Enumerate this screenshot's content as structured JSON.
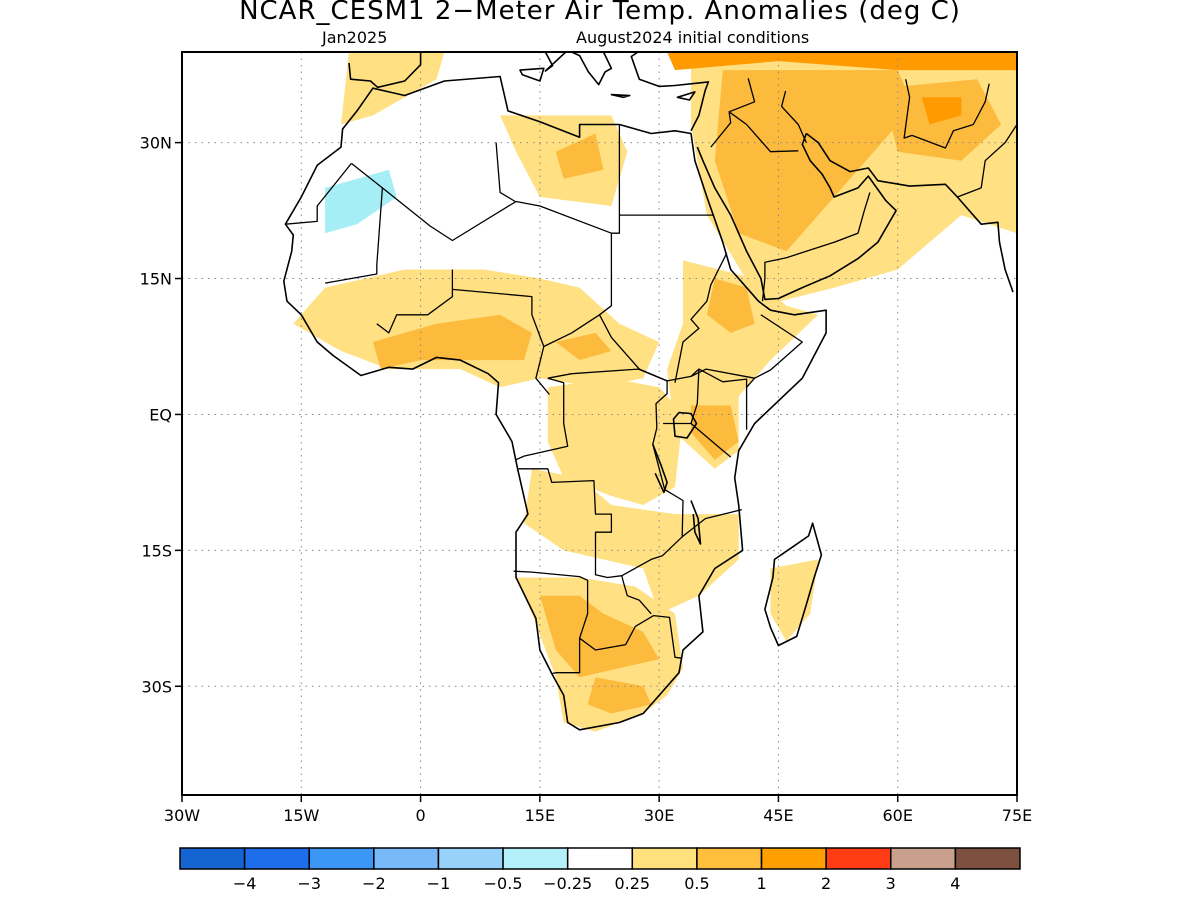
{
  "header": {
    "title": "NCAR_CESM1 2−Meter Air Temp. Anomalies (deg C)",
    "valid_month": "Jan2025",
    "init": "August2024 initial conditions"
  },
  "map": {
    "lon_range": [
      -30,
      75
    ],
    "lat_range": [
      -42,
      40
    ],
    "grid_lines": "dotted",
    "lat_ticks": [
      {
        "lat": 30,
        "label": "30N"
      },
      {
        "lat": 15,
        "label": "15N"
      },
      {
        "lat": 0,
        "label": "EQ"
      },
      {
        "lat": -15,
        "label": "15S"
      },
      {
        "lat": -30,
        "label": "30S"
      }
    ],
    "lon_ticks": [
      {
        "lon": -30,
        "label": "30W"
      },
      {
        "lon": -15,
        "label": "15W"
      },
      {
        "lon": 0,
        "label": "0"
      },
      {
        "lon": 15,
        "label": "15E"
      },
      {
        "lon": 30,
        "label": "30E"
      },
      {
        "lon": 45,
        "label": "45E"
      },
      {
        "lon": 60,
        "label": "60E"
      },
      {
        "lon": 75,
        "label": "75E"
      }
    ],
    "fill_colors": {
      "negative": "#a6eef6",
      "weak_positive": "#ffe083",
      "moderate_positive": "#fdbb3e",
      "strong_positive": "#ff9a00"
    }
  },
  "colorbar": {
    "colors": [
      "#1464d2",
      "#1e6eeb",
      "#3c96f5",
      "#78b9fa",
      "#96d2fa",
      "#b4f0fa",
      "#ffffff",
      "#ffe17d",
      "#ffbe3c",
      "#ffa000",
      "#ff3c14",
      "#c8a08c",
      "#7d5040"
    ],
    "labels": [
      "−4",
      "−3",
      "−2",
      "−1",
      "−0.5",
      "−0.25",
      "0.25",
      "0.5",
      "1",
      "2",
      "3",
      "4"
    ]
  }
}
